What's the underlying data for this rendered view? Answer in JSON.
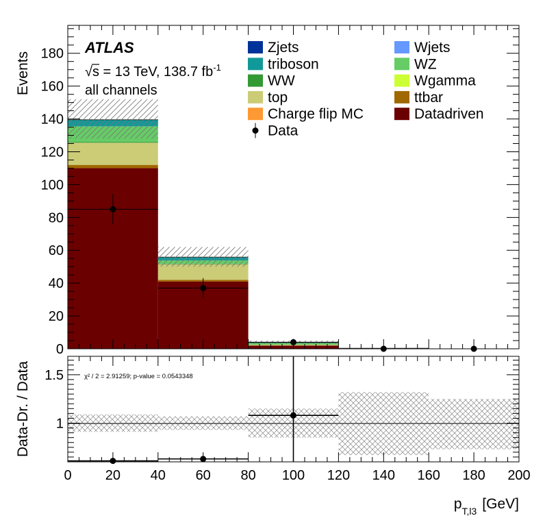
{
  "chart_data": {
    "type": "bar",
    "stacked": true,
    "title": "",
    "atlas_label": "ATLAS",
    "energy_label": "√s = 13 TeV, 138.7 fb",
    "energy_superscript": "-1",
    "channel_label": "all channels",
    "xlabel_main": "p",
    "xlabel_sub": "T,l3",
    "xlabel_unit": "[GeV]",
    "ylabel": "Events",
    "ratio_ylabel": "Data-Dr. / Data",
    "xlim": [
      0,
      200
    ],
    "ylim": [
      0,
      197
    ],
    "ratio_ylim": [
      0.6,
      1.69
    ],
    "x_ticks": [
      "0",
      "20",
      "40",
      "60",
      "80",
      "100",
      "120",
      "140",
      "160",
      "180",
      "200"
    ],
    "y_ticks": [
      "0",
      "20",
      "40",
      "60",
      "80",
      "100",
      "120",
      "140",
      "160",
      "180"
    ],
    "ratio_y_ticks": [
      "1",
      "1.5"
    ],
    "bin_edges": [
      0,
      40,
      80,
      120,
      160,
      200
    ],
    "series": [
      {
        "name": "Datadriven",
        "color": "#6b0000",
        "values": [
          110,
          41,
          2,
          0,
          0
        ]
      },
      {
        "name": "ttbar",
        "color": "#a06800",
        "values": [
          2,
          1,
          0,
          0,
          0
        ]
      },
      {
        "name": "top",
        "color": "#cccc77",
        "values": [
          13.5,
          9.5,
          0.5,
          0.3,
          0
        ]
      },
      {
        "name": "WW",
        "color": "#339933",
        "values": [
          0.5,
          0.3,
          0,
          0,
          0
        ]
      },
      {
        "name": "WZ",
        "color": "#66cc66",
        "values": [
          9.5,
          2,
          1,
          0,
          0
        ]
      },
      {
        "name": "triboson",
        "color": "#119999",
        "values": [
          4,
          2,
          0.3,
          0,
          0
        ]
      },
      {
        "name": "Zjets",
        "color": "#003399",
        "values": [
          0,
          0,
          0,
          0,
          0
        ]
      },
      {
        "name": "Wjets",
        "color": "#6699ff",
        "values": [
          0,
          0,
          0,
          0,
          0
        ]
      },
      {
        "name": "Wgamma",
        "color": "#ccff33",
        "values": [
          0,
          0,
          0,
          0,
          0
        ]
      },
      {
        "name": "Charge flip MC",
        "color": "#ff9933",
        "values": [
          0,
          0,
          0,
          0,
          0
        ]
      }
    ],
    "uncertainty_band": {
      "low": [
        128,
        50,
        3,
        0,
        0
      ],
      "high": [
        152,
        62,
        5,
        0.3,
        0
      ]
    },
    "data": {
      "name": "Data",
      "x": [
        20,
        60,
        100,
        140,
        180
      ],
      "x_err": [
        20,
        20,
        20,
        0,
        0
      ],
      "y": [
        85,
        37,
        4,
        0,
        0
      ],
      "y_err": [
        9.2,
        6.1,
        2,
        0,
        0
      ]
    },
    "ratio": {
      "points": [
        {
          "x": 20,
          "x_err": 20,
          "y": 0.61,
          "y_err": 0
        },
        {
          "x": 60,
          "x_err": 20,
          "y": 0.63,
          "y_err": 0
        },
        {
          "x": 100,
          "x_err": 20,
          "y": 1.08,
          "y_err": 0.8
        }
      ],
      "band": [
        {
          "x0": 0,
          "x1": 40,
          "low": 0.91,
          "high": 1.09
        },
        {
          "x0": 40,
          "x1": 80,
          "low": 0.93,
          "high": 1.07
        },
        {
          "x0": 80,
          "x1": 120,
          "low": 0.85,
          "high": 1.15
        },
        {
          "x0": 120,
          "x1": 160,
          "low": 0.67,
          "high": 1.32
        },
        {
          "x0": 160,
          "x1": 200,
          "low": 0.73,
          "high": 1.25
        }
      ],
      "chi2_text": "χ² / 2 = 2.91259; p-value = 0.0543348"
    },
    "legend": [
      {
        "name": "Zjets",
        "color": "#003399",
        "marker": "box"
      },
      {
        "name": "Wjets",
        "color": "#6699ff",
        "marker": "box"
      },
      {
        "name": "triboson",
        "color": "#119999",
        "marker": "box"
      },
      {
        "name": "WZ",
        "color": "#66cc66",
        "marker": "box"
      },
      {
        "name": "WW",
        "color": "#339933",
        "marker": "box"
      },
      {
        "name": "Wgamma",
        "color": "#ccff33",
        "marker": "box"
      },
      {
        "name": "top",
        "color": "#cccc77",
        "marker": "box"
      },
      {
        "name": "ttbar",
        "color": "#a06800",
        "marker": "box"
      },
      {
        "name": "Charge flip MC",
        "color": "#ff9933",
        "marker": "box"
      },
      {
        "name": "Datadriven",
        "color": "#6b0000",
        "marker": "box"
      },
      {
        "name": "Data",
        "color": "#000000",
        "marker": "point"
      }
    ]
  }
}
